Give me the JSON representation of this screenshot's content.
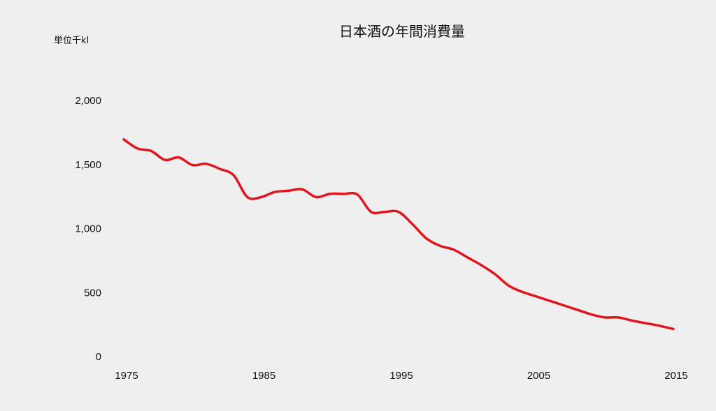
{
  "chart_data": {
    "type": "line",
    "title": "日本酒の年間消費量",
    "unit_label": "単位千kl",
    "xlabel": "",
    "ylabel": "",
    "xlim": [
      1975,
      2015
    ],
    "ylim": [
      0,
      2000
    ],
    "x_ticks": [
      "1975",
      "1985",
      "1995",
      "2005",
      "2015"
    ],
    "y_ticks": [
      "0",
      "500",
      "1,000",
      "1,500",
      "2,000"
    ],
    "grid": false,
    "legend": "none",
    "colors": {
      "line": "#e0161f",
      "background": "#f0efef",
      "text": "#111111"
    },
    "series": [
      {
        "x": [
          1975,
          1976,
          1977,
          1978,
          1979,
          1980,
          1981,
          1982,
          1983,
          1984,
          1985,
          1986,
          1987,
          1988,
          1989,
          1990,
          1991,
          1992,
          1993,
          1994,
          1995,
          1996,
          1997,
          1998,
          1999,
          2000,
          2001,
          2002,
          2003,
          2004,
          2005,
          2006,
          2007,
          2008,
          2009,
          2010,
          2011,
          2012,
          2013,
          2014,
          2015
        ],
        "y": [
          1690,
          1620,
          1600,
          1530,
          1550,
          1490,
          1500,
          1460,
          1410,
          1240,
          1240,
          1280,
          1290,
          1300,
          1240,
          1265,
          1265,
          1260,
          1125,
          1125,
          1125,
          1030,
          920,
          860,
          830,
          770,
          710,
          640,
          550,
          500,
          465,
          430,
          395,
          360,
          325,
          300,
          300,
          275,
          255,
          235,
          210
        ]
      }
    ]
  }
}
